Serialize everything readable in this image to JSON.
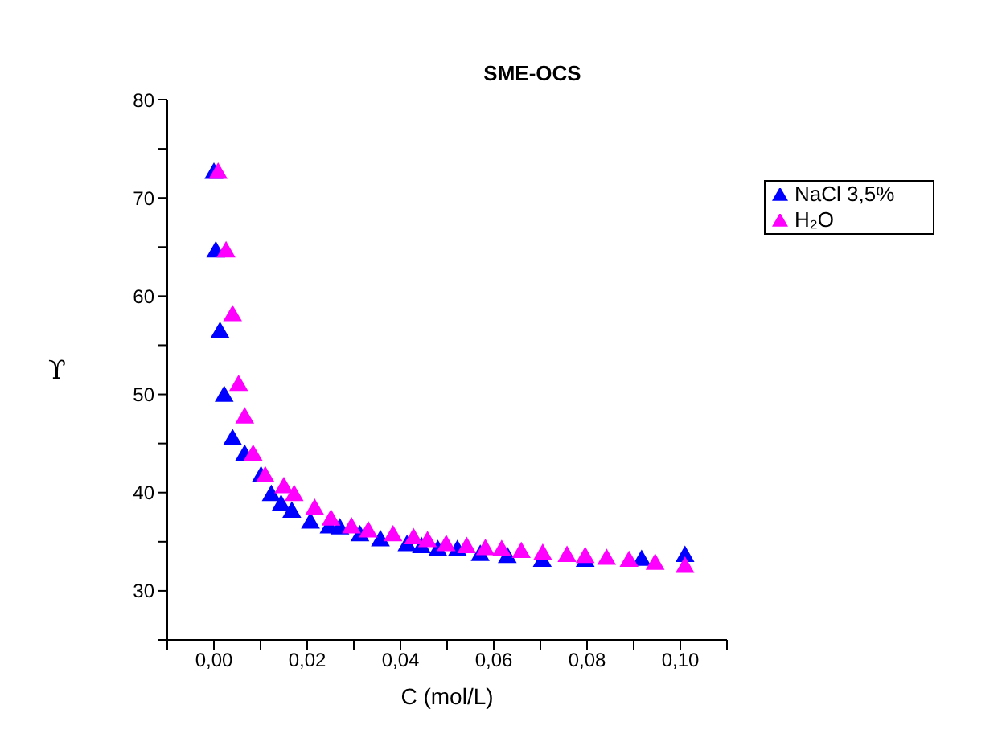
{
  "chart_data": {
    "type": "scatter",
    "title": "SME-OCS",
    "xlabel": "C (mol/L)",
    "ylabel": "ϒ",
    "xlim": [
      -0.01,
      0.11
    ],
    "xticks": [
      {
        "value": -0.01,
        "label": null
      },
      {
        "value": 0,
        "label": "0,00"
      },
      {
        "value": 0.01,
        "label": null
      },
      {
        "value": 0.02,
        "label": "0,02"
      },
      {
        "value": 0.03,
        "label": null
      },
      {
        "value": 0.04,
        "label": "0,04"
      },
      {
        "value": 0.05,
        "label": null
      },
      {
        "value": 0.06,
        "label": "0,06"
      },
      {
        "value": 0.07,
        "label": null
      },
      {
        "value": 0.08,
        "label": "0,08"
      },
      {
        "value": 0.09,
        "label": null
      },
      {
        "value": 0.1,
        "label": "0,10"
      },
      {
        "value": 0.11,
        "label": null
      }
    ],
    "ylim": [
      25,
      80
    ],
    "yticks": [
      {
        "value": 25,
        "label": null
      },
      30,
      {
        "value": 35,
        "label": null
      },
      40,
      {
        "value": 45,
        "label": null
      },
      50,
      {
        "value": 55,
        "label": null
      },
      60,
      {
        "value": 65,
        "label": null
      },
      70,
      {
        "value": 75,
        "label": null
      },
      80
    ],
    "marker": "triangle",
    "legend": "top right",
    "series": [
      {
        "name": "NaCl 3,5%",
        "color": "#0000ff",
        "x": [
          0.0,
          0.0004,
          0.0013,
          0.0022,
          0.004,
          0.0066,
          0.0101,
          0.0123,
          0.0144,
          0.0167,
          0.0207,
          0.0247,
          0.027,
          0.0313,
          0.0357,
          0.0414,
          0.0445,
          0.048,
          0.0522,
          0.0571,
          0.0629,
          0.0704,
          0.0796,
          0.0917,
          0.101
        ],
        "values": [
          72.5,
          64.5,
          56.3,
          49.8,
          45.4,
          43.8,
          41.6,
          39.7,
          38.7,
          38.0,
          36.9,
          36.4,
          36.3,
          35.6,
          35.1,
          34.6,
          34.4,
          34.1,
          34.1,
          33.6,
          33.4,
          33.0,
          33.0,
          33.1,
          33.5
        ]
      },
      {
        "name": "H₂O",
        "color": "#ff00ff",
        "x": [
          0.0009,
          0.0026,
          0.004,
          0.0053,
          0.0066,
          0.0084,
          0.011,
          0.015,
          0.0172,
          0.0216,
          0.0251,
          0.0295,
          0.0331,
          0.0384,
          0.0428,
          0.0458,
          0.0498,
          0.0542,
          0.0582,
          0.0617,
          0.0659,
          0.0705,
          0.0757,
          0.0796,
          0.0842,
          0.089,
          0.0946,
          0.101
        ],
        "values": [
          72.5,
          64.5,
          58.0,
          50.9,
          47.6,
          43.8,
          41.6,
          40.5,
          39.7,
          38.3,
          37.2,
          36.4,
          36.0,
          35.6,
          35.3,
          35.0,
          34.6,
          34.4,
          34.2,
          34.1,
          33.9,
          33.7,
          33.5,
          33.4,
          33.2,
          33.0,
          32.7,
          32.4
        ]
      }
    ]
  }
}
